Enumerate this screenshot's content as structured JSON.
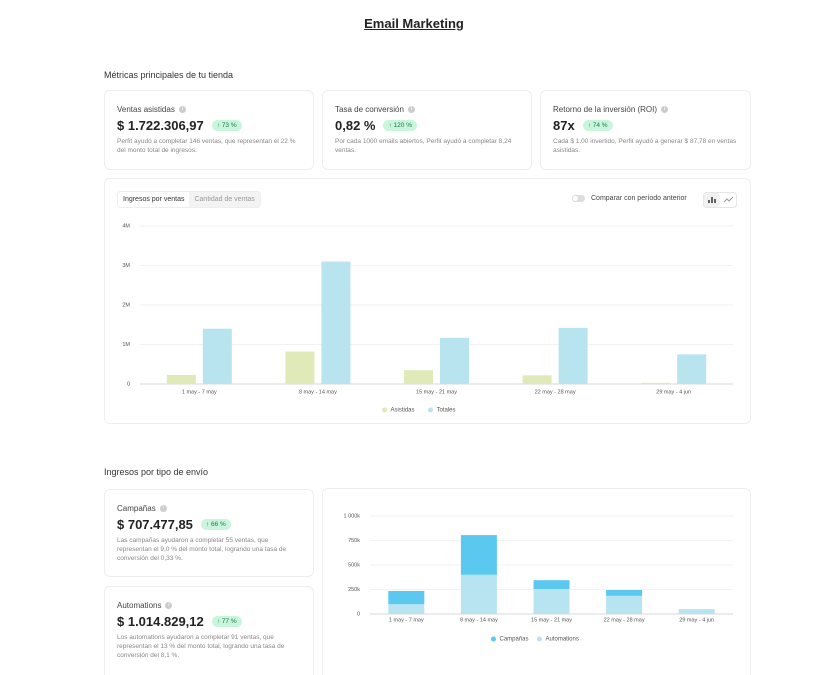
{
  "header": {
    "title": "Email Marketing"
  },
  "metrics_section": {
    "title": "Métricas principales de tu tienda",
    "cards": [
      {
        "label": "Ventas asistidas",
        "value": "$ 1.722.306,97",
        "badge": "73 %",
        "description": "Perfit ayudó a completar 146 ventas, que representan el 22 % del monto total de ingresos."
      },
      {
        "label": "Tasa de conversión",
        "value": "0,82 %",
        "badge": "120 %",
        "description": "Por cada 1000 emails abiertos, Perfit ayudó a completar 8,24 ventas."
      },
      {
        "label": "Retorno de la inversión (ROI)",
        "value": "87x",
        "badge": "74 %",
        "description": "Cada $ 1,00 invertido, Perfit ayudó a generar $ 87,78 en ventas asistidas."
      }
    ]
  },
  "sales_chart_controls": {
    "tabs": [
      "Ingresos por ventas",
      "Cantidad de ventas"
    ],
    "compare_label": "Comparar con período anterior"
  },
  "send_type_section": {
    "title": "Ingresos por tipo de envío",
    "cards": [
      {
        "label": "Campañas",
        "value": "$ 707.477,85",
        "badge": "66 %",
        "description": "Las campañas ayudaron a completar 55 ventas, que representan el 9,0 % del monto total, logrando una tasa de conversión del 0,33 %."
      },
      {
        "label": "Automations",
        "value": "$ 1.014.829,12",
        "badge": "77 %",
        "description": "Los automations ayudaron a completar 91 ventas, que representan el 13 % del monto total, logrando una tasa de conversión del 8,1 %."
      }
    ]
  },
  "chart_data": [
    {
      "type": "bar",
      "stacked": false,
      "grid": true,
      "categories": [
        "1 may - 7 may",
        "8 may - 14 may",
        "15 may - 21 may",
        "22 may - 28 may",
        "29 may - 4 jun"
      ],
      "series": [
        {
          "name": "Asistidas",
          "color": "#dfeab8",
          "values": [
            230000,
            820000,
            350000,
            220000,
            30000
          ]
        },
        {
          "name": "Totales",
          "color": "#b8e4ef",
          "values": [
            1400000,
            3100000,
            1170000,
            1420000,
            750000
          ]
        }
      ],
      "ylim": [
        0,
        4000000
      ],
      "yticks": [
        0,
        {
          "value": 1000000,
          "label": "1M"
        },
        {
          "value": 2000000,
          "label": "2M"
        },
        {
          "value": 3000000,
          "label": "3M"
        },
        {
          "value": 4000000,
          "label": "4M"
        }
      ]
    },
    {
      "type": "bar",
      "stacked": true,
      "grid": true,
      "categories": [
        "1 may - 7 may",
        "8 may - 14 may",
        "15 may - 21 may",
        "22 may - 28 may",
        "29 may - 4 jun"
      ],
      "series": [
        {
          "name": "Campañas",
          "color": "#5bc8ef",
          "values": [
            135000,
            405000,
            90000,
            60000,
            0
          ]
        },
        {
          "name": "Automations",
          "color": "#b8e4f2",
          "values": [
            100000,
            400000,
            255000,
            185000,
            50000
          ]
        }
      ],
      "ylim": [
        0,
        1000000
      ],
      "yticks": [
        0,
        {
          "value": 250000,
          "label": "250k"
        },
        {
          "value": 500000,
          "label": "500k"
        },
        {
          "value": 750000,
          "label": "750k"
        },
        {
          "value": 1000000,
          "label": "1 000k"
        }
      ]
    }
  ]
}
